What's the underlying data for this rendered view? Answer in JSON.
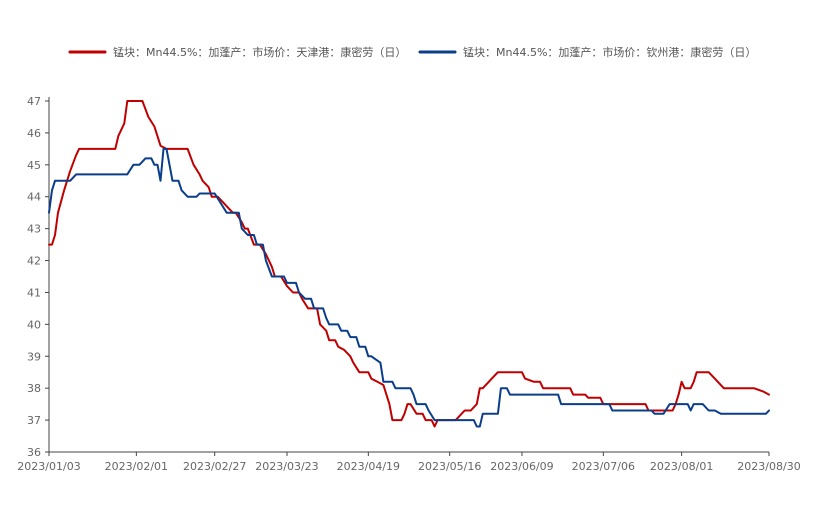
{
  "chart_data": {
    "type": "line",
    "title": "",
    "xlabel": "",
    "ylabel": "",
    "ylim": [
      36,
      47
    ],
    "yticks": [
      36,
      37,
      38,
      39,
      40,
      41,
      42,
      43,
      44,
      45,
      46,
      47
    ],
    "xlim": [
      "2023-01-03",
      "2023-08-30"
    ],
    "xticks": [
      "2023/01/03",
      "2023/02/01",
      "2023/02/27",
      "2023/03/23",
      "2023/04/19",
      "2023/05/16",
      "2023/06/09",
      "2023/07/06",
      "2023/08/01",
      "2023/08/30"
    ],
    "legend": "top-center",
    "grid": false,
    "series": [
      {
        "name": "锰块：Mn44.5%：加蓬产：市场价：天津港：康密劳（日）",
        "color": "#c00000",
        "points": [
          [
            "2023-01-03",
            42.5
          ],
          [
            "2023-01-04",
            42.5
          ],
          [
            "2023-01-05",
            42.8
          ],
          [
            "2023-01-06",
            43.5
          ],
          [
            "2023-01-08",
            44.2
          ],
          [
            "2023-01-10",
            44.8
          ],
          [
            "2023-01-12",
            45.3
          ],
          [
            "2023-01-13",
            45.5
          ],
          [
            "2023-01-20",
            45.5
          ],
          [
            "2023-01-25",
            45.5
          ],
          [
            "2023-01-26",
            45.9
          ],
          [
            "2023-01-27",
            46.1
          ],
          [
            "2023-01-28",
            46.3
          ],
          [
            "2023-01-29",
            47.0
          ],
          [
            "2023-02-03",
            47.0
          ],
          [
            "2023-02-05",
            46.5
          ],
          [
            "2023-02-07",
            46.2
          ],
          [
            "2023-02-09",
            45.6
          ],
          [
            "2023-02-11",
            45.5
          ],
          [
            "2023-02-18",
            45.5
          ],
          [
            "2023-02-20",
            45.0
          ],
          [
            "2023-02-22",
            44.7
          ],
          [
            "2023-02-23",
            44.5
          ],
          [
            "2023-02-25",
            44.3
          ],
          [
            "2023-02-26",
            44.0
          ],
          [
            "2023-02-28",
            44.0
          ],
          [
            "2023-03-02",
            43.8
          ],
          [
            "2023-03-05",
            43.5
          ],
          [
            "2023-03-06",
            43.5
          ],
          [
            "2023-03-08",
            43.2
          ],
          [
            "2023-03-09",
            43.0
          ],
          [
            "2023-03-10",
            43.0
          ],
          [
            "2023-03-12",
            42.5
          ],
          [
            "2023-03-14",
            42.5
          ],
          [
            "2023-03-16",
            42.2
          ],
          [
            "2023-03-17",
            42.0
          ],
          [
            "2023-03-18",
            41.8
          ],
          [
            "2023-03-19",
            41.5
          ],
          [
            "2023-03-21",
            41.5
          ],
          [
            "2023-03-23",
            41.2
          ],
          [
            "2023-03-25",
            41.0
          ],
          [
            "2023-03-27",
            41.0
          ],
          [
            "2023-03-28",
            40.8
          ],
          [
            "2023-03-30",
            40.5
          ],
          [
            "2023-04-02",
            40.5
          ],
          [
            "2023-04-03",
            40.0
          ],
          [
            "2023-04-05",
            39.8
          ],
          [
            "2023-04-06",
            39.5
          ],
          [
            "2023-04-08",
            39.5
          ],
          [
            "2023-04-09",
            39.3
          ],
          [
            "2023-04-11",
            39.2
          ],
          [
            "2023-04-13",
            39.0
          ],
          [
            "2023-04-14",
            38.8
          ],
          [
            "2023-04-16",
            38.5
          ],
          [
            "2023-04-19",
            38.5
          ],
          [
            "2023-04-20",
            38.3
          ],
          [
            "2023-04-22",
            38.2
          ],
          [
            "2023-04-24",
            38.1
          ],
          [
            "2023-04-25",
            37.8
          ],
          [
            "2023-04-26",
            37.5
          ],
          [
            "2023-04-27",
            37.0
          ],
          [
            "2023-04-30",
            37.0
          ],
          [
            "2023-05-01",
            37.2
          ],
          [
            "2023-05-02",
            37.5
          ],
          [
            "2023-05-03",
            37.5
          ],
          [
            "2023-05-05",
            37.2
          ],
          [
            "2023-05-07",
            37.2
          ],
          [
            "2023-05-08",
            37.0
          ],
          [
            "2023-05-10",
            37.0
          ],
          [
            "2023-05-11",
            36.8
          ],
          [
            "2023-05-12",
            37.0
          ],
          [
            "2023-05-18",
            37.0
          ],
          [
            "2023-05-20",
            37.2
          ],
          [
            "2023-05-21",
            37.3
          ],
          [
            "2023-05-23",
            37.3
          ],
          [
            "2023-05-25",
            37.5
          ],
          [
            "2023-05-26",
            38.0
          ],
          [
            "2023-05-27",
            38.0
          ],
          [
            "2023-05-29",
            38.2
          ],
          [
            "2023-05-30",
            38.3
          ],
          [
            "2023-06-01",
            38.5
          ],
          [
            "2023-06-08",
            38.5
          ],
          [
            "2023-06-09",
            38.5
          ],
          [
            "2023-06-10",
            38.3
          ],
          [
            "2023-06-13",
            38.2
          ],
          [
            "2023-06-15",
            38.2
          ],
          [
            "2023-06-16",
            38.0
          ],
          [
            "2023-06-19",
            38.0
          ],
          [
            "2023-06-25",
            38.0
          ],
          [
            "2023-06-26",
            37.8
          ],
          [
            "2023-06-30",
            37.8
          ],
          [
            "2023-07-01",
            37.7
          ],
          [
            "2023-07-05",
            37.7
          ],
          [
            "2023-07-06",
            37.5
          ],
          [
            "2023-07-20",
            37.5
          ],
          [
            "2023-07-21",
            37.3
          ],
          [
            "2023-07-29",
            37.3
          ],
          [
            "2023-07-30",
            37.5
          ],
          [
            "2023-07-31",
            37.8
          ],
          [
            "2023-08-01",
            38.2
          ],
          [
            "2023-08-02",
            38.0
          ],
          [
            "2023-08-04",
            38.0
          ],
          [
            "2023-08-05",
            38.2
          ],
          [
            "2023-08-06",
            38.5
          ],
          [
            "2023-08-10",
            38.5
          ],
          [
            "2023-08-12",
            38.3
          ],
          [
            "2023-08-15",
            38.0
          ],
          [
            "2023-08-25",
            38.0
          ],
          [
            "2023-08-28",
            37.9
          ],
          [
            "2023-08-30",
            37.8
          ]
        ]
      },
      {
        "name": "锰块：Mn44.5%：加蓬产：市场价：钦州港：康密劳（日）",
        "color": "#0a3d8a",
        "points": [
          [
            "2023-01-03",
            43.5
          ],
          [
            "2023-01-04",
            44.2
          ],
          [
            "2023-01-05",
            44.5
          ],
          [
            "2023-01-10",
            44.5
          ],
          [
            "2023-01-12",
            44.7
          ],
          [
            "2023-01-20",
            44.7
          ],
          [
            "2023-01-28",
            44.7
          ],
          [
            "2023-01-29",
            44.7
          ],
          [
            "2023-01-31",
            45.0
          ],
          [
            "2023-02-02",
            45.0
          ],
          [
            "2023-02-04",
            45.2
          ],
          [
            "2023-02-06",
            45.2
          ],
          [
            "2023-02-07",
            45.0
          ],
          [
            "2023-02-08",
            45.0
          ],
          [
            "2023-02-09",
            44.5
          ],
          [
            "2023-02-10",
            45.5
          ],
          [
            "2023-02-11",
            45.5
          ],
          [
            "2023-02-12",
            45.0
          ],
          [
            "2023-02-13",
            44.5
          ],
          [
            "2023-02-15",
            44.5
          ],
          [
            "2023-02-16",
            44.2
          ],
          [
            "2023-02-18",
            44.0
          ],
          [
            "2023-02-21",
            44.0
          ],
          [
            "2023-02-22",
            44.1
          ],
          [
            "2023-02-27",
            44.1
          ],
          [
            "2023-03-01",
            43.8
          ],
          [
            "2023-03-03",
            43.5
          ],
          [
            "2023-03-07",
            43.5
          ],
          [
            "2023-03-08",
            43.0
          ],
          [
            "2023-03-10",
            42.8
          ],
          [
            "2023-03-12",
            42.8
          ],
          [
            "2023-03-13",
            42.5
          ],
          [
            "2023-03-15",
            42.5
          ],
          [
            "2023-03-16",
            42.0
          ],
          [
            "2023-03-18",
            41.5
          ],
          [
            "2023-03-22",
            41.5
          ],
          [
            "2023-03-23",
            41.3
          ],
          [
            "2023-03-26",
            41.3
          ],
          [
            "2023-03-27",
            41.0
          ],
          [
            "2023-03-29",
            40.8
          ],
          [
            "2023-03-31",
            40.8
          ],
          [
            "2023-04-01",
            40.5
          ],
          [
            "2023-04-04",
            40.5
          ],
          [
            "2023-04-05",
            40.2
          ],
          [
            "2023-04-06",
            40.0
          ],
          [
            "2023-04-09",
            40.0
          ],
          [
            "2023-04-10",
            39.8
          ],
          [
            "2023-04-12",
            39.8
          ],
          [
            "2023-04-13",
            39.6
          ],
          [
            "2023-04-15",
            39.6
          ],
          [
            "2023-04-16",
            39.3
          ],
          [
            "2023-04-18",
            39.3
          ],
          [
            "2023-04-19",
            39.0
          ],
          [
            "2023-04-20",
            39.0
          ],
          [
            "2023-04-23",
            38.8
          ],
          [
            "2023-04-24",
            38.2
          ],
          [
            "2023-04-27",
            38.2
          ],
          [
            "2023-04-28",
            38.0
          ],
          [
            "2023-05-03",
            38.0
          ],
          [
            "2023-05-04",
            37.8
          ],
          [
            "2023-05-05",
            37.5
          ],
          [
            "2023-05-08",
            37.5
          ],
          [
            "2023-05-09",
            37.3
          ],
          [
            "2023-05-11",
            37.0
          ],
          [
            "2023-05-21",
            37.0
          ],
          [
            "2023-05-24",
            37.0
          ],
          [
            "2023-05-25",
            36.8
          ],
          [
            "2023-05-26",
            36.8
          ],
          [
            "2023-05-27",
            37.2
          ],
          [
            "2023-06-01",
            37.2
          ],
          [
            "2023-06-02",
            38.0
          ],
          [
            "2023-06-04",
            38.0
          ],
          [
            "2023-06-05",
            37.8
          ],
          [
            "2023-06-20",
            37.8
          ],
          [
            "2023-06-21",
            37.8
          ],
          [
            "2023-06-22",
            37.5
          ],
          [
            "2023-07-06",
            37.5
          ],
          [
            "2023-07-08",
            37.5
          ],
          [
            "2023-07-09",
            37.3
          ],
          [
            "2023-07-20",
            37.3
          ],
          [
            "2023-07-22",
            37.3
          ],
          [
            "2023-07-23",
            37.2
          ],
          [
            "2023-07-26",
            37.2
          ],
          [
            "2023-07-28",
            37.5
          ],
          [
            "2023-08-03",
            37.5
          ],
          [
            "2023-08-04",
            37.3
          ],
          [
            "2023-08-05",
            37.5
          ],
          [
            "2023-08-08",
            37.5
          ],
          [
            "2023-08-10",
            37.3
          ],
          [
            "2023-08-12",
            37.3
          ],
          [
            "2023-08-14",
            37.2
          ],
          [
            "2023-08-29",
            37.2
          ],
          [
            "2023-08-30",
            37.3
          ]
        ]
      }
    ]
  }
}
